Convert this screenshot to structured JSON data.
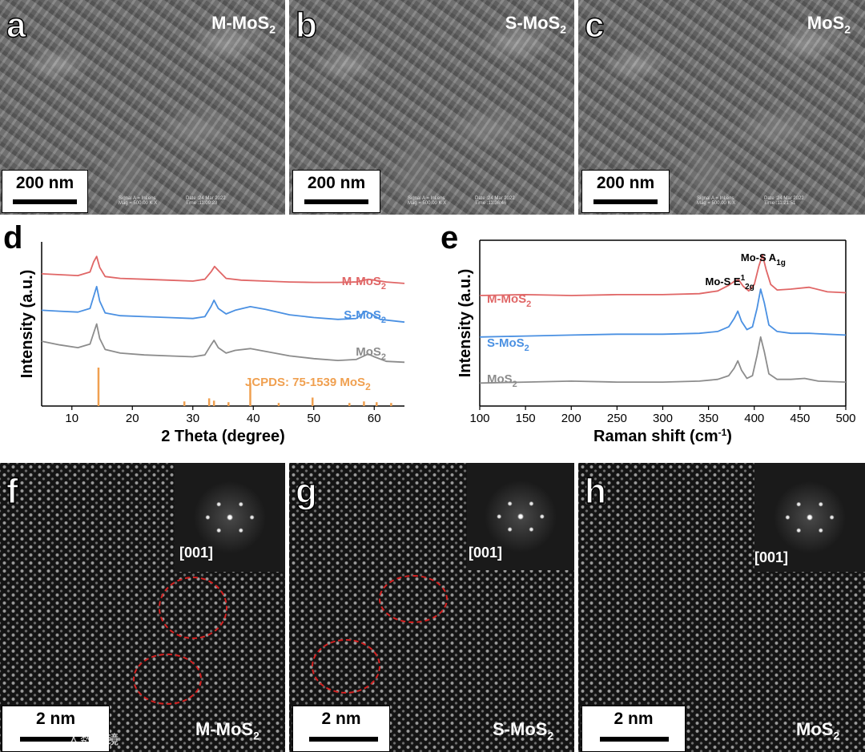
{
  "sem_panels": [
    {
      "letter": "a",
      "sample": "M-MoS",
      "sample_sub": "2",
      "scale": "200 nm",
      "meta_l1": "Signal A = InLens",
      "meta_l2": "Mag = 500.00 K X",
      "meta_r1": "Date :24 Mar 2022",
      "meta_r2": "Time :11:09:28"
    },
    {
      "letter": "b",
      "sample": "S-MoS",
      "sample_sub": "2",
      "scale": "200 nm",
      "meta_l1": "Signal A = InLens",
      "meta_l2": "Mag = 500.00 K X",
      "meta_r1": "Date :24 Mar 2022",
      "meta_r2": "Time :11:36:46"
    },
    {
      "letter": "c",
      "sample": "MoS",
      "sample_sub": "2",
      "scale": "200 nm",
      "meta_l1": "Signal A = InLens",
      "meta_l2": "Mag = 500.00 K X",
      "meta_r1": "Date :24 Mar 2022",
      "meta_r2": "Time :11:21:51"
    }
  ],
  "stem_panels": [
    {
      "letter": "f",
      "sample": "M-MoS",
      "sample_sub": "2",
      "scale": "2 nm",
      "zone": "[001]"
    },
    {
      "letter": "g",
      "sample": "S-MoS",
      "sample_sub": "2",
      "scale": "2 nm",
      "zone": "[001]"
    },
    {
      "letter": "h",
      "sample": "MoS",
      "sample_sub": "2",
      "scale": "2 nm",
      "zone": "[001]"
    }
  ],
  "watermark": "人数控镜",
  "chart_data": [
    {
      "panel": "d",
      "type": "line",
      "xlabel": "2 Theta (degree)",
      "ylabel": "Intensity (a.u.)",
      "xlim": [
        5,
        65
      ],
      "xticks": [
        10,
        20,
        30,
        40,
        50,
        60
      ],
      "y_ticks_shown": false,
      "series": [
        {
          "name": "M-MoS2",
          "label": "M-MoS",
          "label_sub": "2",
          "color": "#e06666",
          "x": [
            5,
            8,
            11,
            13,
            13.6,
            14.1,
            14.6,
            15.5,
            18,
            22,
            26,
            30,
            32,
            33,
            33.6,
            34.3,
            35.5,
            38,
            42,
            46,
            50,
            54,
            57,
            59,
            60,
            62,
            65
          ],
          "y": [
            7.25,
            7.2,
            7.15,
            7.35,
            7.9,
            8.2,
            7.6,
            7.1,
            7.0,
            6.95,
            6.9,
            6.85,
            6.95,
            7.35,
            7.65,
            7.4,
            7.0,
            6.9,
            6.85,
            6.8,
            6.78,
            6.78,
            6.8,
            6.95,
            6.9,
            6.8,
            6.72
          ]
        },
        {
          "name": "S-MoS2",
          "label": "S-MoS",
          "label_sub": "2",
          "color": "#4a90e2",
          "x": [
            5,
            8,
            11,
            13,
            13.6,
            14.1,
            14.6,
            15.5,
            18,
            22,
            26,
            30,
            32,
            33,
            33.5,
            34.2,
            35.5,
            37,
            39.5,
            42,
            46,
            50,
            54,
            57,
            58.6,
            59.5,
            61,
            65
          ],
          "y": [
            5.25,
            5.2,
            5.15,
            5.35,
            6.0,
            6.55,
            5.75,
            5.1,
            4.95,
            4.9,
            4.85,
            4.8,
            4.9,
            5.45,
            5.8,
            5.35,
            5.05,
            5.25,
            5.45,
            5.3,
            5.0,
            4.85,
            4.75,
            4.8,
            5.2,
            5.05,
            4.75,
            4.6
          ]
        },
        {
          "name": "MoS2",
          "label": "MoS",
          "label_sub": "2",
          "color": "#8c8c8c",
          "x": [
            5,
            8,
            11,
            13,
            13.6,
            14.1,
            14.6,
            15.5,
            18,
            22,
            26,
            30,
            32,
            33,
            33.5,
            34.2,
            35.5,
            37,
            39.5,
            42,
            46,
            50,
            54,
            57,
            59,
            60,
            62,
            65
          ],
          "y": [
            3.55,
            3.35,
            3.2,
            3.4,
            4.0,
            4.5,
            3.7,
            3.1,
            2.9,
            2.8,
            2.75,
            2.7,
            2.8,
            3.35,
            3.6,
            3.2,
            2.9,
            3.05,
            3.15,
            3.0,
            2.75,
            2.6,
            2.5,
            2.55,
            2.85,
            2.7,
            2.45,
            2.4
          ]
        }
      ],
      "reference": {
        "label": "JCPDS: 75-1539  MoS",
        "label_sub": "2",
        "color": "#f0a050",
        "positions": [
          14.4,
          28.6,
          32.7,
          33.5,
          35.9,
          39.5,
          44.2,
          49.8,
          55.9,
          58.3,
          60.4,
          62.8
        ],
        "heights": [
          1.0,
          0.12,
          0.2,
          0.14,
          0.1,
          0.6,
          0.08,
          0.22,
          0.08,
          0.12,
          0.1,
          0.08
        ]
      }
    },
    {
      "panel": "e",
      "type": "line",
      "xlabel": "Raman shift (cm",
      "xlabel_sup": "-1",
      "xlabel_end": ")",
      "ylabel": "Intensity (a.u.)",
      "xlim": [
        100,
        500
      ],
      "xticks": [
        100,
        150,
        200,
        250,
        300,
        350,
        400,
        450,
        500
      ],
      "y_ticks_shown": false,
      "peak_labels": [
        {
          "text": "Mo-S A",
          "sub": "1g",
          "x": 408
        },
        {
          "text": "Mo-S E",
          "sup": "1",
          "sub": "2g",
          "x": 382
        }
      ],
      "series": [
        {
          "name": "M-MoS2",
          "label": "M-MoS",
          "label_sub": "2",
          "color": "#e06666",
          "x": [
            100,
            150,
            200,
            250,
            300,
            340,
            360,
            372,
            379,
            383,
            388,
            394,
            400,
            405,
            409,
            413,
            418,
            425,
            440,
            460,
            480,
            500
          ],
          "y": [
            6.0,
            6.05,
            6.0,
            6.05,
            6.05,
            6.1,
            6.25,
            6.55,
            6.8,
            6.85,
            6.5,
            6.25,
            6.6,
            7.6,
            8.2,
            7.4,
            6.6,
            6.3,
            6.35,
            6.45,
            6.2,
            6.15
          ]
        },
        {
          "name": "S-MoS2",
          "label": "S-MoS",
          "label_sub": "2",
          "color": "#4a90e2",
          "x": [
            100,
            150,
            200,
            250,
            300,
            340,
            360,
            372,
            378,
            382,
            386,
            392,
            398,
            403,
            407,
            411,
            416,
            425,
            440,
            460,
            480,
            500
          ],
          "y": [
            3.75,
            3.8,
            3.85,
            3.9,
            3.9,
            3.95,
            4.05,
            4.3,
            4.75,
            5.15,
            4.6,
            4.15,
            4.3,
            5.3,
            6.35,
            5.6,
            4.4,
            4.05,
            3.95,
            3.95,
            3.9,
            3.85
          ]
        },
        {
          "name": "MoS2",
          "label": "MoS",
          "label_sub": "2",
          "color": "#8c8c8c",
          "x": [
            100,
            150,
            200,
            250,
            300,
            340,
            360,
            372,
            378,
            382,
            386,
            392,
            398,
            403,
            407,
            411,
            416,
            425,
            440,
            455,
            470,
            500
          ],
          "y": [
            1.25,
            1.3,
            1.35,
            1.3,
            1.3,
            1.35,
            1.45,
            1.65,
            2.05,
            2.45,
            1.95,
            1.5,
            1.65,
            2.75,
            3.75,
            2.95,
            1.75,
            1.45,
            1.45,
            1.5,
            1.35,
            1.3
          ]
        }
      ]
    }
  ]
}
